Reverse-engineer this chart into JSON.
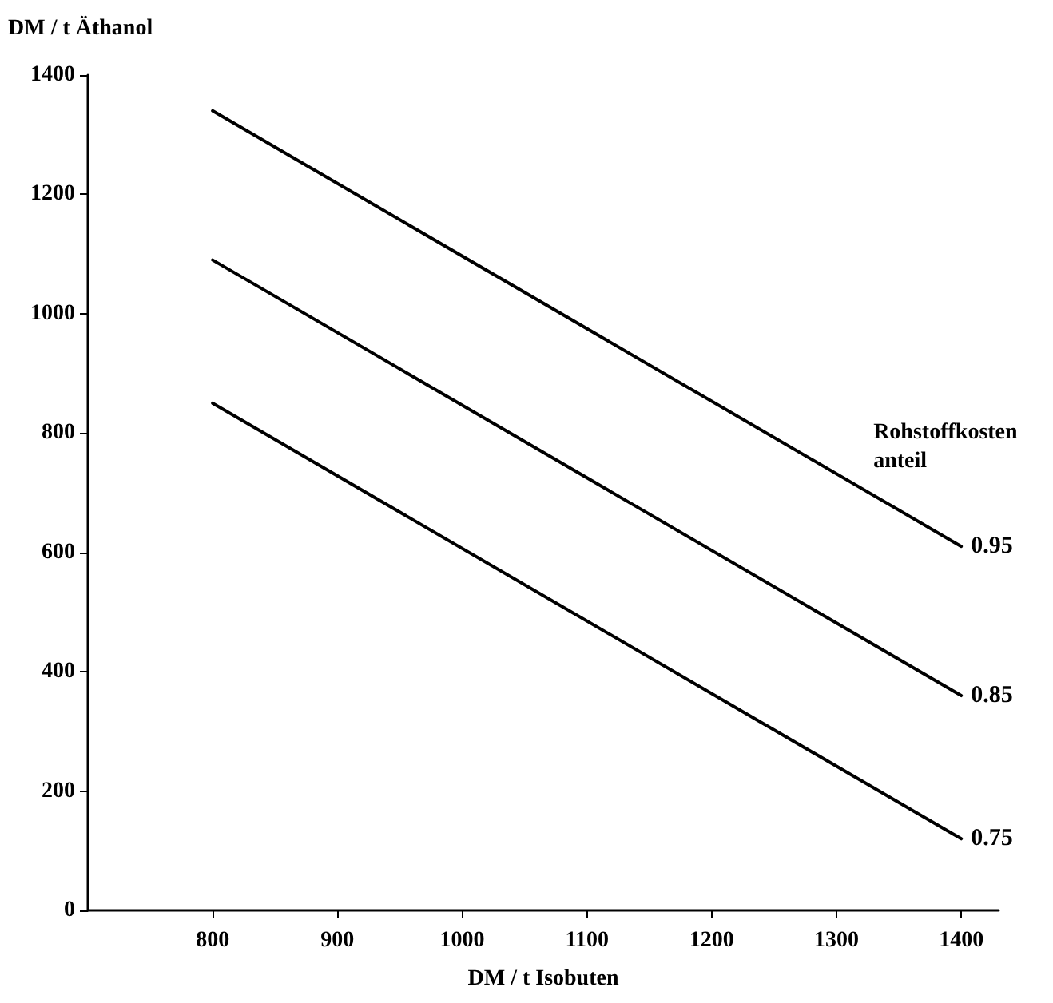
{
  "chart_data": {
    "type": "line",
    "xlabel": "DM / t Isobuten",
    "ylabel": "DM / t Äthanol",
    "legend_title": "Rohstoffkosten\nanteil",
    "x": [
      800,
      1400
    ],
    "series": [
      {
        "name": "0.95",
        "color": "#000000",
        "values": [
          1340,
          610
        ]
      },
      {
        "name": "0.85",
        "color": "#000000",
        "values": [
          1090,
          360
        ]
      },
      {
        "name": "0.75",
        "color": "#000000",
        "values": [
          850,
          120
        ]
      }
    ],
    "xlim": [
      700,
      1430
    ],
    "xticks": [
      800,
      900,
      1000,
      1100,
      1200,
      1300,
      1400
    ],
    "ylim": [
      0,
      1400
    ],
    "yticks": [
      0,
      200,
      400,
      600,
      800,
      1000,
      1200,
      1400
    ],
    "grid": false,
    "legend": false,
    "marker": "none",
    "line_style": "solid"
  }
}
